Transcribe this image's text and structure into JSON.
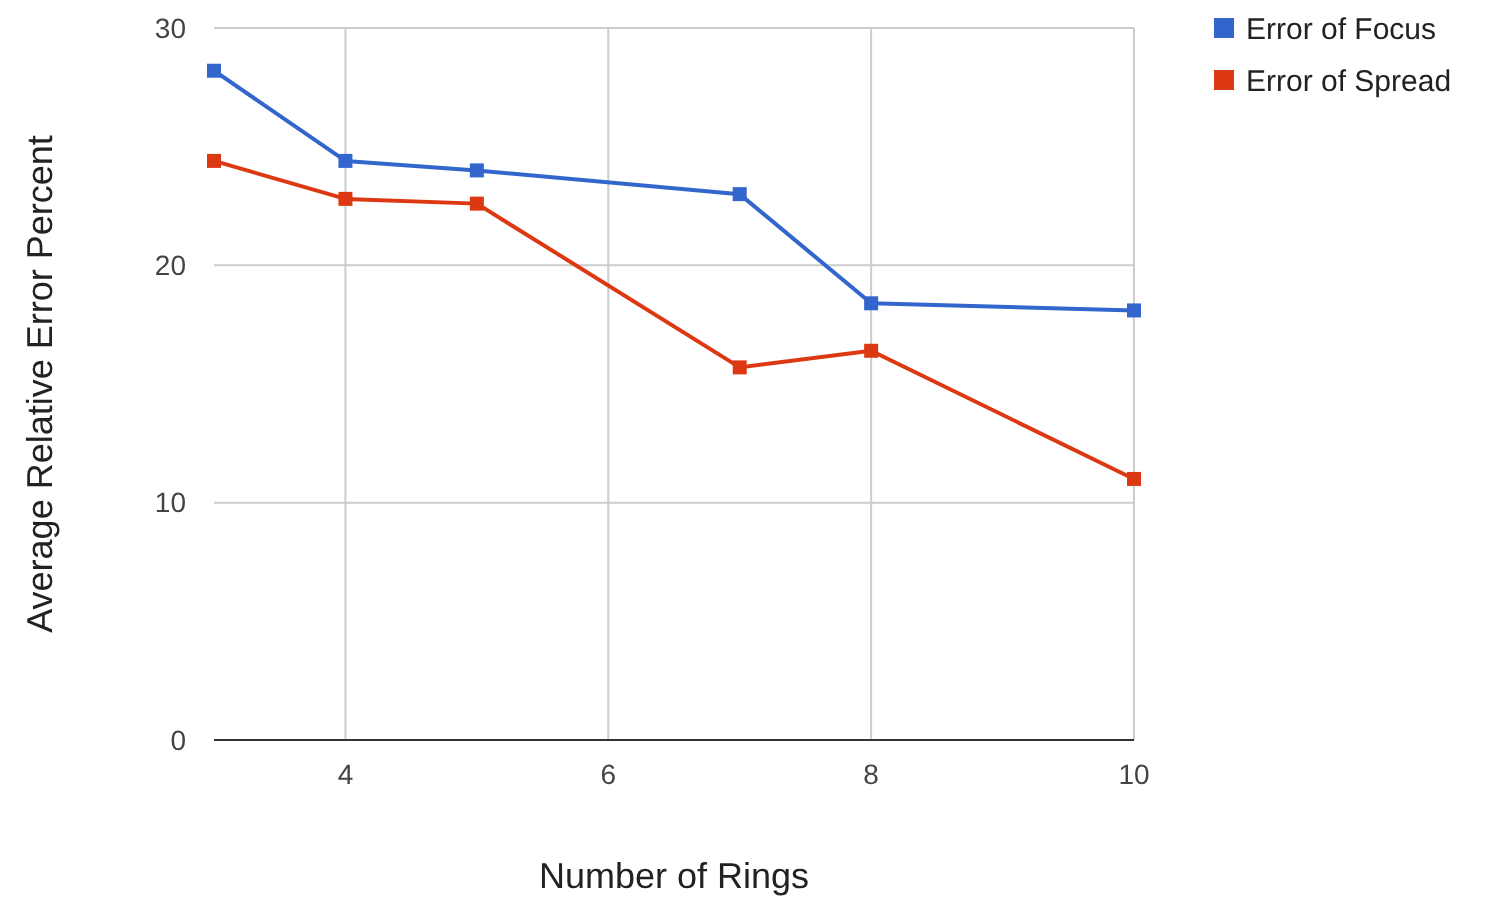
{
  "chart_data": {
    "type": "line",
    "xlabel": "Number of Rings",
    "ylabel": "Average Relative Error Percent",
    "x": [
      3,
      4,
      5,
      7,
      8,
      10
    ],
    "series": [
      {
        "name": "Error of Focus",
        "color": "#3366cc",
        "values": [
          28.2,
          24.4,
          24.0,
          23.0,
          18.4,
          18.1
        ]
      },
      {
        "name": "Error of Spread",
        "color": "#dc3912",
        "values": [
          24.4,
          22.8,
          22.6,
          15.7,
          16.4,
          11.0
        ]
      }
    ],
    "xlim": [
      3,
      10
    ],
    "xticks": [
      4,
      6,
      8,
      10
    ],
    "ylim": [
      0,
      30
    ],
    "yticks": [
      0,
      10,
      20,
      30
    ],
    "grid": true,
    "legend": "top right",
    "marker": "square",
    "line_style": "solid"
  }
}
